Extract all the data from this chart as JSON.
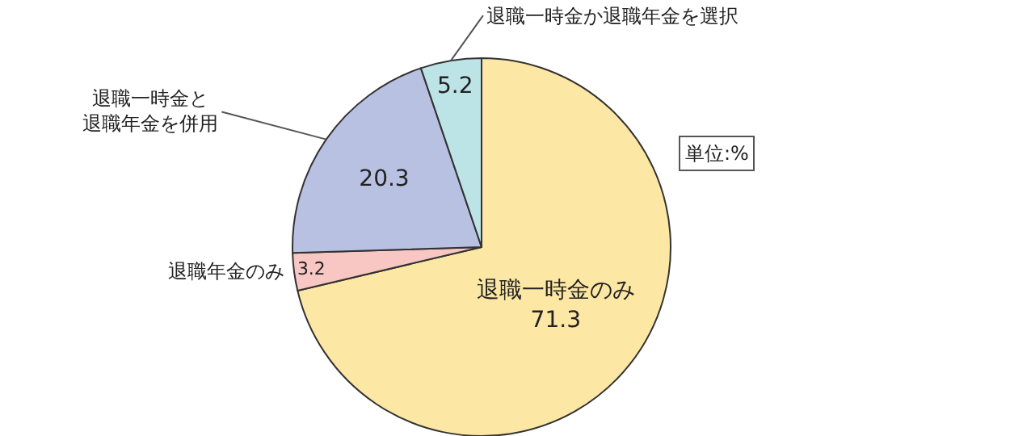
{
  "chart_data": {
    "type": "pie",
    "categories": [
      "退職一時金のみ",
      "退職年金のみ",
      "退職一時金と退職年金を併用",
      "退職一時金か退職年金を選択"
    ],
    "values": [
      71.3,
      3.2,
      20.3,
      5.2
    ],
    "colors": [
      "#fde7a4",
      "#f8c6c3",
      "#b9c1e3",
      "#bce3e6"
    ],
    "data_labels": true,
    "annotations": [
      "単位:%"
    ]
  }
}
